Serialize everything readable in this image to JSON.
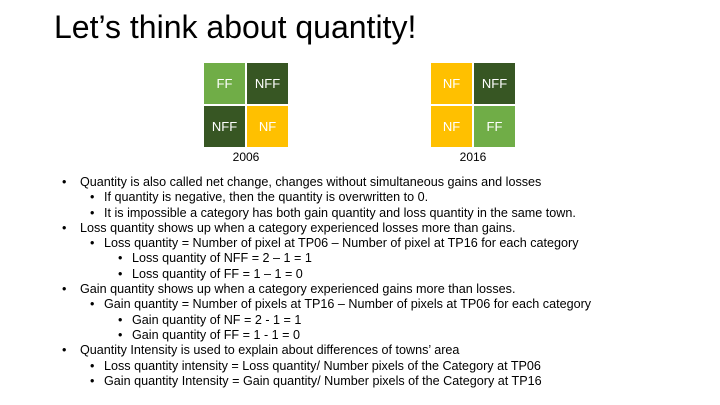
{
  "slide": {
    "title": "Let’s think about quantity!",
    "colors": {
      "light_green": "#70ad47",
      "dark_green": "#375623",
      "yellow": "#ffc000"
    },
    "grids": [
      {
        "caption": "2006",
        "cells": [
          {
            "label": "FF",
            "color": "#70ad47"
          },
          {
            "label": "NFF",
            "color": "#375623"
          },
          {
            "label": "NFF",
            "color": "#375623"
          },
          {
            "label": "NF",
            "color": "#ffc000"
          }
        ]
      },
      {
        "caption": "2016",
        "cells": [
          {
            "label": "NF",
            "color": "#ffc000"
          },
          {
            "label": "NFF",
            "color": "#375623"
          },
          {
            "label": "NF",
            "color": "#ffc000"
          },
          {
            "label": "FF",
            "color": "#70ad47"
          }
        ]
      }
    ],
    "bullets": [
      {
        "level": 0,
        "text": "Quantity is also called net change, changes without simultaneous gains and losses"
      },
      {
        "level": 1,
        "text": "If quantity is negative, then the quantity is overwritten to 0."
      },
      {
        "level": 1,
        "text": "It is impossible a category has both gain quantity and loss quantity in the same town."
      },
      {
        "level": 0,
        "text": "Loss quantity shows up when a category experienced losses more than gains."
      },
      {
        "level": 1,
        "text": "Loss quantity = Number of pixel at TP06 – Number of pixel at TP16 for each category"
      },
      {
        "level": 2,
        "text": "Loss quantity of NFF = 2 – 1 = 1"
      },
      {
        "level": 2,
        "text": "Loss quantity of FF = 1 – 1 = 0"
      },
      {
        "level": 0,
        "text": "Gain quantity shows up when a category experienced gains more than losses."
      },
      {
        "level": 1,
        "text": "Gain quantity = Number of pixels at TP16 – Number of pixels at TP06 for each category"
      },
      {
        "level": 2,
        "text": "Gain quantity of NF = 2 - 1 = 1"
      },
      {
        "level": 2,
        "text": "Gain quantity of FF = 1 - 1 = 0"
      },
      {
        "level": 0,
        "text": "Quantity Intensity is used to explain about differences of towns’ area"
      },
      {
        "level": 1,
        "text": "Loss quantity intensity = Loss quantity/ Number pixels of the Category at TP06"
      },
      {
        "level": 1,
        "text": "Gain quantity Intensity = Gain quantity/ Number pixels of the Category at TP16"
      }
    ],
    "bullet_glyphs": [
      "•",
      "•",
      "•"
    ]
  }
}
